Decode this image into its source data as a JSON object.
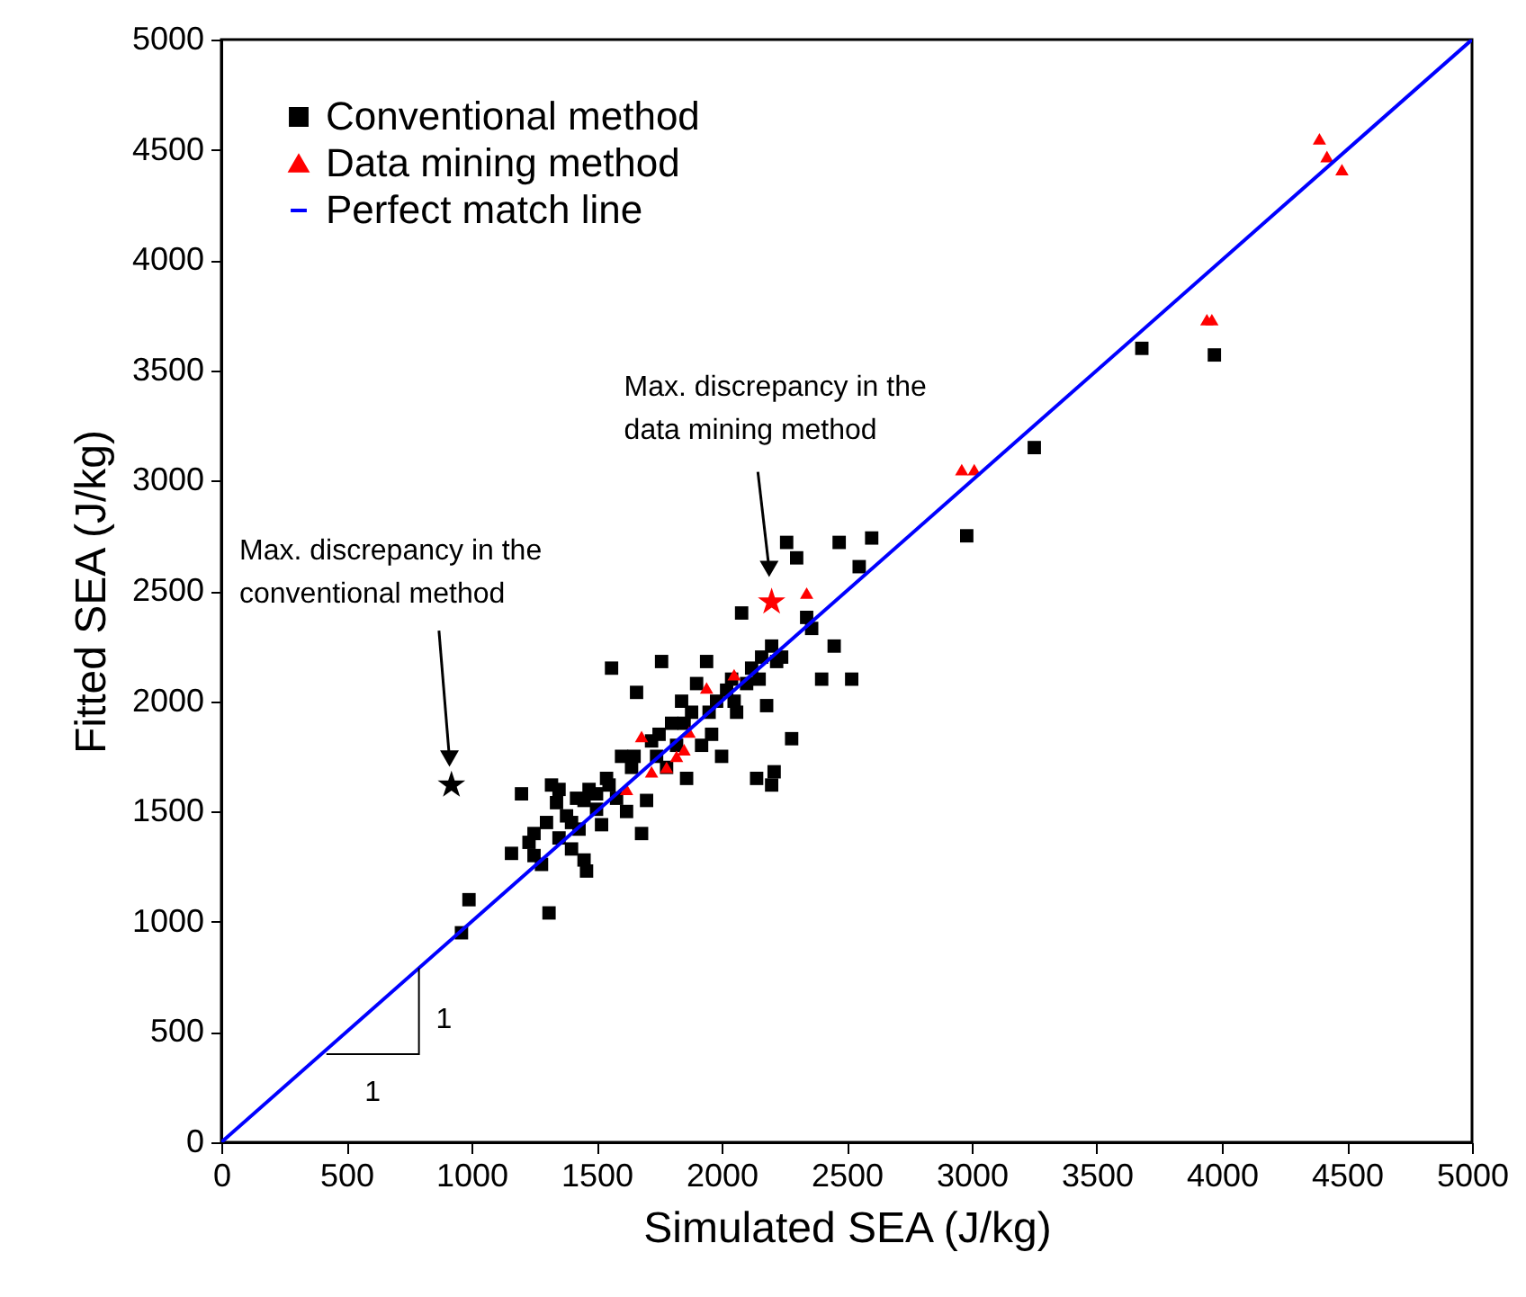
{
  "chart_data": {
    "type": "scatter",
    "xlabel": "Simulated SEA (J/kg)",
    "ylabel": "Fitted SEA (J/kg)",
    "xlim": [
      0,
      5000
    ],
    "ylim": [
      0,
      5000
    ],
    "xticks": [
      0,
      500,
      1000,
      1500,
      2000,
      2500,
      3000,
      3500,
      4000,
      4500,
      5000
    ],
    "yticks": [
      0,
      500,
      1000,
      1500,
      2000,
      2500,
      3000,
      3500,
      4000,
      4500,
      5000
    ],
    "legend": "top left",
    "annotations": [
      "Max. discrepancy in the conventional method",
      "Max. discrepancy in the data mining method",
      "1",
      "1"
    ],
    "series": [
      {
        "name": "Conventional method",
        "marker": "square",
        "color": "#000000",
        "x": [
          960,
          990,
          1160,
          1200,
          1230,
          1250,
          1280,
          1300,
          1310,
          1320,
          1340,
          1350,
          1380,
          1400,
          1420,
          1430,
          1450,
          1460,
          1470,
          1500,
          1520,
          1540,
          1560,
          1580,
          1600,
          1620,
          1640,
          1660,
          1680,
          1700,
          1720,
          1740,
          1760,
          1780,
          1800,
          1820,
          1840,
          1860,
          1880,
          1900,
          1920,
          1940,
          1960,
          1980,
          2000,
          2020,
          2040,
          2060,
          2080,
          2100,
          2120,
          2140,
          2160,
          2180,
          2200,
          2200,
          2210,
          2220,
          2240,
          2260,
          2280,
          2300,
          2340,
          2360,
          2400,
          2450,
          2470,
          2520,
          2550,
          2600,
          2980,
          3250,
          3680,
          3970,
          1250,
          1350,
          1450,
          1550,
          1650,
          1750,
          1850,
          1950,
          2050,
          2150,
          1400,
          1500
        ],
        "values": [
          950,
          1100,
          1310,
          1580,
          1360,
          1300,
          1260,
          1450,
          1040,
          1620,
          1540,
          1380,
          1480,
          1330,
          1560,
          1420,
          1280,
          1230,
          1600,
          1510,
          1440,
          1650,
          2150,
          1560,
          1750,
          1500,
          1700,
          2040,
          1400,
          1550,
          1820,
          1750,
          2180,
          1700,
          1900,
          1800,
          2000,
          1650,
          1950,
          2080,
          1800,
          2180,
          1850,
          2000,
          1750,
          2050,
          2100,
          1950,
          2400,
          2080,
          2150,
          1650,
          2200,
          1980,
          2250,
          1620,
          1680,
          2180,
          2200,
          2720,
          1830,
          2650,
          2380,
          2330,
          2100,
          2250,
          2720,
          2100,
          2610,
          2740,
          2750,
          3150,
          3600,
          3570,
          1400,
          1600,
          1550,
          1620,
          1750,
          1850,
          1900,
          1950,
          2000,
          2100,
          1450,
          1580
        ]
      },
      {
        "name": "Data mining method",
        "marker": "triangle",
        "color": "#ff0000",
        "x": [
          1620,
          1680,
          1720,
          1780,
          1820,
          1850,
          1870,
          1940,
          2050,
          2340,
          2960,
          3010,
          3940,
          3960,
          4390,
          4420,
          4480
        ],
        "values": [
          1600,
          1840,
          1680,
          1700,
          1750,
          1780,
          1860,
          2060,
          2120,
          2490,
          3050,
          3050,
          3730,
          3730,
          4550,
          4470,
          4410
        ]
      },
      {
        "name": "Perfect match line",
        "type": "line",
        "marker": "none",
        "color": "#0000ff",
        "x": [
          0,
          5000
        ],
        "values": [
          0,
          5000
        ]
      },
      {
        "marker": "star",
        "color": "#000000",
        "x": [
          920
        ],
        "values": [
          1620
        ]
      },
      {
        "marker": "star",
        "color": "#ff0000",
        "x": [
          2200
        ],
        "values": [
          2450
        ]
      }
    ]
  }
}
